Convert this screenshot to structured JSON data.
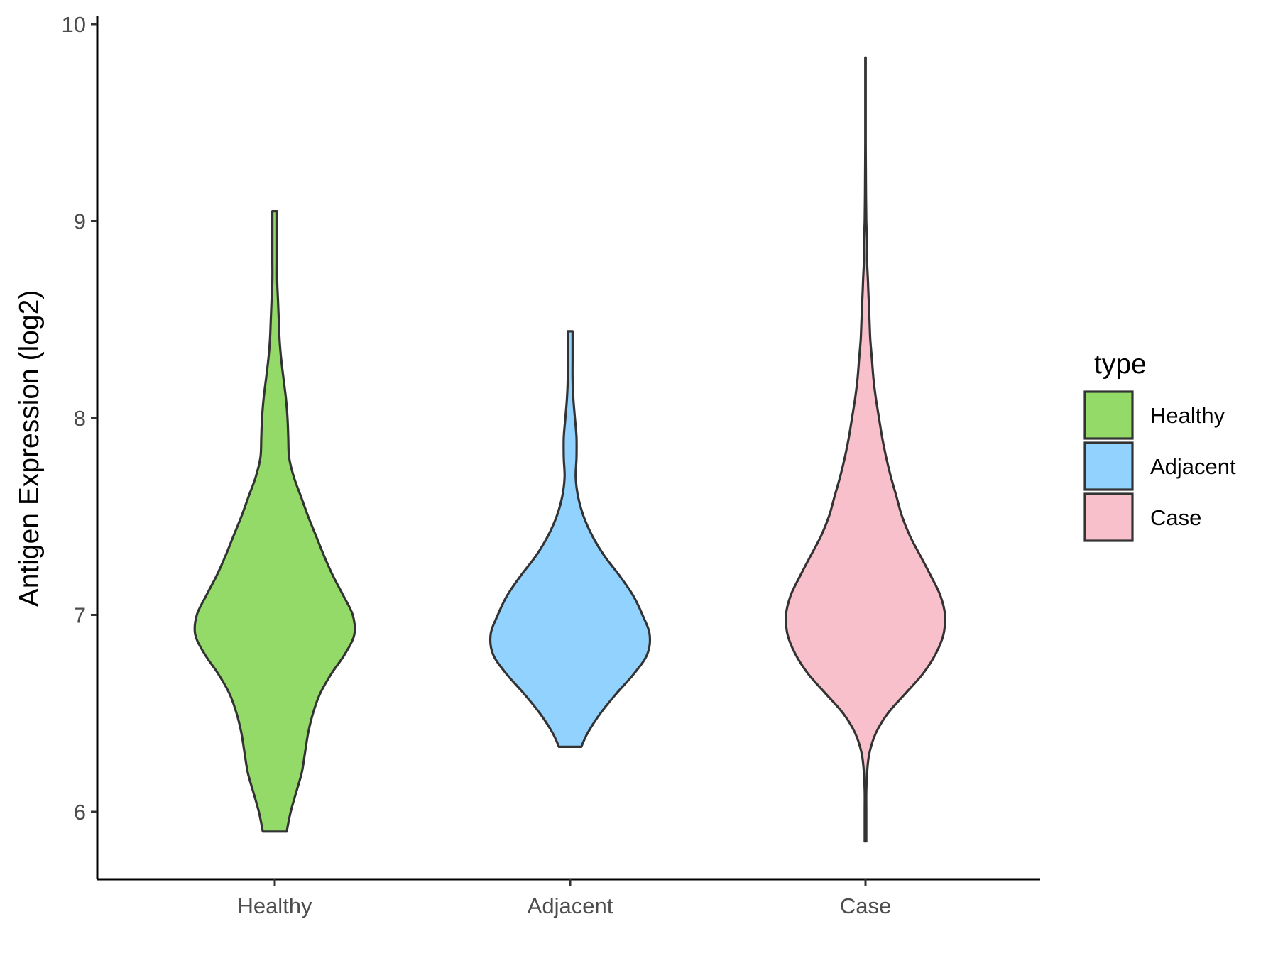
{
  "chart_data": {
    "type": "violin",
    "title": "",
    "xlabel": "",
    "ylabel": "Antigen Expression (log2)",
    "ylim": [
      5.65,
      10.05
    ],
    "yticks": [
      6,
      7,
      8,
      9,
      10
    ],
    "categories": [
      "Healthy",
      "Adjacent",
      "Case"
    ],
    "grid": false,
    "legend": {
      "title": "type",
      "position": "right",
      "entries": [
        "Healthy",
        "Adjacent",
        "Case"
      ]
    },
    "series": [
      {
        "name": "Healthy",
        "color": "#93DA69",
        "ymin": 5.9,
        "ymax": 9.05,
        "profile": [
          [
            5.9,
            0.15
          ],
          [
            6.0,
            0.2
          ],
          [
            6.1,
            0.27
          ],
          [
            6.2,
            0.34
          ],
          [
            6.3,
            0.38
          ],
          [
            6.4,
            0.42
          ],
          [
            6.5,
            0.48
          ],
          [
            6.6,
            0.57
          ],
          [
            6.7,
            0.71
          ],
          [
            6.8,
            0.88
          ],
          [
            6.9,
            1.0
          ],
          [
            7.0,
            0.98
          ],
          [
            7.1,
            0.86
          ],
          [
            7.2,
            0.73
          ],
          [
            7.3,
            0.62
          ],
          [
            7.4,
            0.52
          ],
          [
            7.5,
            0.42
          ],
          [
            7.6,
            0.33
          ],
          [
            7.7,
            0.24
          ],
          [
            7.8,
            0.18
          ],
          [
            7.9,
            0.17
          ],
          [
            8.0,
            0.16
          ],
          [
            8.1,
            0.14
          ],
          [
            8.2,
            0.11
          ],
          [
            8.3,
            0.08
          ],
          [
            8.4,
            0.06
          ],
          [
            8.5,
            0.05
          ],
          [
            8.6,
            0.04
          ],
          [
            8.7,
            0.03
          ],
          [
            8.8,
            0.03
          ],
          [
            8.9,
            0.03
          ],
          [
            9.0,
            0.03
          ],
          [
            9.05,
            0.03
          ]
        ]
      },
      {
        "name": "Adjacent",
        "color": "#92D2FE",
        "ymin": 6.33,
        "ymax": 8.44,
        "profile": [
          [
            6.33,
            0.14
          ],
          [
            6.4,
            0.22
          ],
          [
            6.5,
            0.38
          ],
          [
            6.6,
            0.58
          ],
          [
            6.7,
            0.8
          ],
          [
            6.8,
            0.97
          ],
          [
            6.9,
            1.0
          ],
          [
            7.0,
            0.91
          ],
          [
            7.1,
            0.79
          ],
          [
            7.2,
            0.62
          ],
          [
            7.3,
            0.43
          ],
          [
            7.4,
            0.28
          ],
          [
            7.5,
            0.17
          ],
          [
            7.6,
            0.1
          ],
          [
            7.7,
            0.07
          ],
          [
            7.8,
            0.08
          ],
          [
            7.9,
            0.08
          ],
          [
            8.0,
            0.06
          ],
          [
            8.1,
            0.04
          ],
          [
            8.2,
            0.03
          ],
          [
            8.3,
            0.03
          ],
          [
            8.44,
            0.03
          ]
        ]
      },
      {
        "name": "Case",
        "color": "#F8C0CB",
        "ymin": 5.85,
        "ymax": 9.83,
        "profile": [
          [
            5.85,
            0.01
          ],
          [
            6.0,
            0.01
          ],
          [
            6.1,
            0.01
          ],
          [
            6.2,
            0.02
          ],
          [
            6.3,
            0.05
          ],
          [
            6.4,
            0.13
          ],
          [
            6.5,
            0.28
          ],
          [
            6.6,
            0.5
          ],
          [
            6.7,
            0.72
          ],
          [
            6.8,
            0.88
          ],
          [
            6.9,
            0.98
          ],
          [
            7.0,
            1.0
          ],
          [
            7.1,
            0.94
          ],
          [
            7.2,
            0.82
          ],
          [
            7.3,
            0.69
          ],
          [
            7.4,
            0.56
          ],
          [
            7.5,
            0.46
          ],
          [
            7.6,
            0.39
          ],
          [
            7.7,
            0.32
          ],
          [
            7.8,
            0.26
          ],
          [
            7.9,
            0.21
          ],
          [
            8.0,
            0.17
          ],
          [
            8.1,
            0.13
          ],
          [
            8.2,
            0.1
          ],
          [
            8.3,
            0.08
          ],
          [
            8.4,
            0.06
          ],
          [
            8.5,
            0.05
          ],
          [
            8.6,
            0.04
          ],
          [
            8.7,
            0.03
          ],
          [
            8.8,
            0.02
          ],
          [
            8.9,
            0.02
          ],
          [
            9.0,
            0.01
          ],
          [
            9.2,
            0.005
          ],
          [
            9.4,
            0.003
          ],
          [
            9.6,
            0.003
          ],
          [
            9.83,
            0.003
          ]
        ]
      }
    ]
  }
}
